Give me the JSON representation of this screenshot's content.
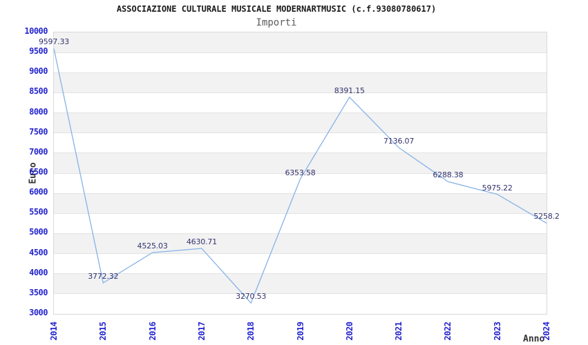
{
  "chart_data": {
    "type": "line",
    "title": "ASSOCIAZIONE CULTURALE MUSICALE MODERNARTMUSIC (c.f.93080780617)",
    "subtitle": "Importi",
    "xlabel": "Anno",
    "ylabel": "Euro",
    "categories": [
      "2014",
      "2015",
      "2016",
      "2017",
      "2018",
      "2019",
      "2020",
      "2021",
      "2022",
      "2023",
      "2024"
    ],
    "series": [
      {
        "name": "Importi",
        "values": [
          9597.33,
          3772.32,
          4525.03,
          4630.71,
          3270.53,
          6353.58,
          8391.15,
          7136.07,
          6288.38,
          5975.22,
          5258.2
        ]
      }
    ],
    "point_labels": [
      "9597.33",
      "3772.32",
      "4525.03",
      "4630.71",
      "3270.53",
      "6353.58",
      "8391.15",
      "7136.07",
      "6288.38",
      "5975.22",
      "5258.2"
    ],
    "ylim": [
      3000,
      10000
    ],
    "ytick_step": 500,
    "grid": "horizontal",
    "banded_background": true,
    "legend_position": "none",
    "colors": {
      "line": "#85b2e8",
      "tick_label": "#2525cf",
      "point_label": "#32326e",
      "band_gray": "#f2f2f2",
      "band_white": "#ffffff",
      "grid_line": "#e3e3e3",
      "plot_border": "#d9d9d9",
      "title": "#1a1a1a",
      "subtitle": "#5c5c5c",
      "axis_title": "#333333"
    }
  }
}
